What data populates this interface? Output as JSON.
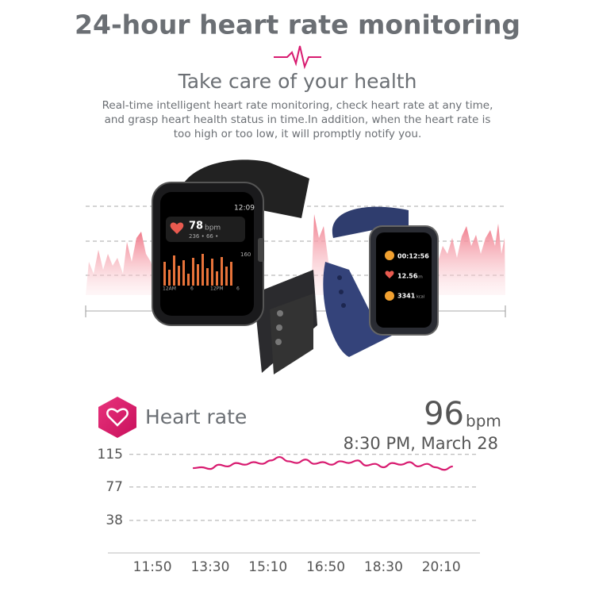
{
  "header": {
    "title": "24-hour heart rate monitoring",
    "subtitle": "Take care of your health",
    "description": [
      "Real-time intelligent heart rate monitoring, check heart rate at any time,",
      "and grasp heart health status in time.In addition, when the heart rate is",
      "too high or too low, it will promptly notify you."
    ]
  },
  "watches": {
    "black": {
      "time": "12:09",
      "heart_value": "78",
      "heart_unit": "bpm",
      "range": "236 • 66 •",
      "scale_top": "160",
      "axis": [
        "12AM",
        "6",
        "12PM",
        "6"
      ]
    },
    "blue": {
      "timer": "00:12:56",
      "distance": "12.56",
      "distance_unit": "km",
      "calories": "3341",
      "calories_unit": "kcal"
    }
  },
  "reading": {
    "label": "Heart rate",
    "value": 96,
    "unit": "bpm",
    "time": "8:30 PM, March 28"
  },
  "chart_data": {
    "type": "line",
    "color": "#d81b70",
    "grid": true,
    "x": [
      780,
      795,
      810,
      825,
      840,
      855,
      870,
      885,
      900,
      915,
      930,
      945,
      960,
      975,
      990,
      1005,
      1020,
      1035,
      1050,
      1065,
      1080,
      1095,
      1110,
      1125,
      1140,
      1155,
      1170,
      1185,
      1200,
      1215,
      1230
    ],
    "values": [
      99,
      100,
      98,
      103,
      101,
      105,
      103,
      106,
      104,
      108,
      112,
      107,
      105,
      109,
      104,
      106,
      103,
      107,
      105,
      108,
      102,
      104,
      100,
      105,
      103,
      106,
      101,
      104,
      100,
      97,
      101
    ],
    "xlim": [
      670,
      1277
    ],
    "ylim": [
      0,
      125
    ],
    "yticks": [
      38,
      77,
      115
    ],
    "xticks": [
      {
        "value": 710,
        "label": "11:50"
      },
      {
        "value": 810,
        "label": "13:30"
      },
      {
        "value": 910,
        "label": "15:10"
      },
      {
        "value": 1010,
        "label": "16:50"
      },
      {
        "value": 1110,
        "label": "18:30"
      },
      {
        "value": 1210,
        "label": "20:10"
      }
    ]
  }
}
